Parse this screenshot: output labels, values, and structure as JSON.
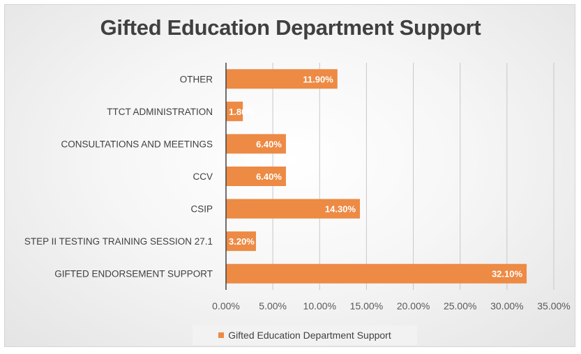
{
  "chart_data": {
    "type": "bar",
    "orientation": "horizontal",
    "title": "Gifted Education Department Support",
    "xlabel": "",
    "ylabel": "",
    "categories": [
      "OTHER",
      "TTCT ADMINISTRATION",
      "CONSULTATIONS AND MEETINGS",
      "CCV",
      "CSIP",
      "STEP II TESTING TRAINING SESSION  27.1",
      "GIFTED ENDORSEMENT SUPPORT"
    ],
    "series": [
      {
        "name": "Gifted Education Department Support",
        "values": [
          11.9,
          1.8,
          6.4,
          6.4,
          14.3,
          3.2,
          32.1
        ],
        "data_labels": [
          "11.90%",
          "1.80%",
          "6.40%",
          "6.40%",
          "14.30%",
          "3.20%",
          "32.10%"
        ],
        "color": "#ED8A44"
      }
    ],
    "xlim": [
      0,
      35
    ],
    "x_ticks": [
      "0.00%",
      "5.00%",
      "10.00%",
      "15.00%",
      "20.00%",
      "25.00%",
      "30.00%",
      "35.00%"
    ],
    "x_tick_values": [
      0,
      5,
      10,
      15,
      20,
      25,
      30,
      35
    ],
    "grid": true,
    "legend": "bottom"
  }
}
